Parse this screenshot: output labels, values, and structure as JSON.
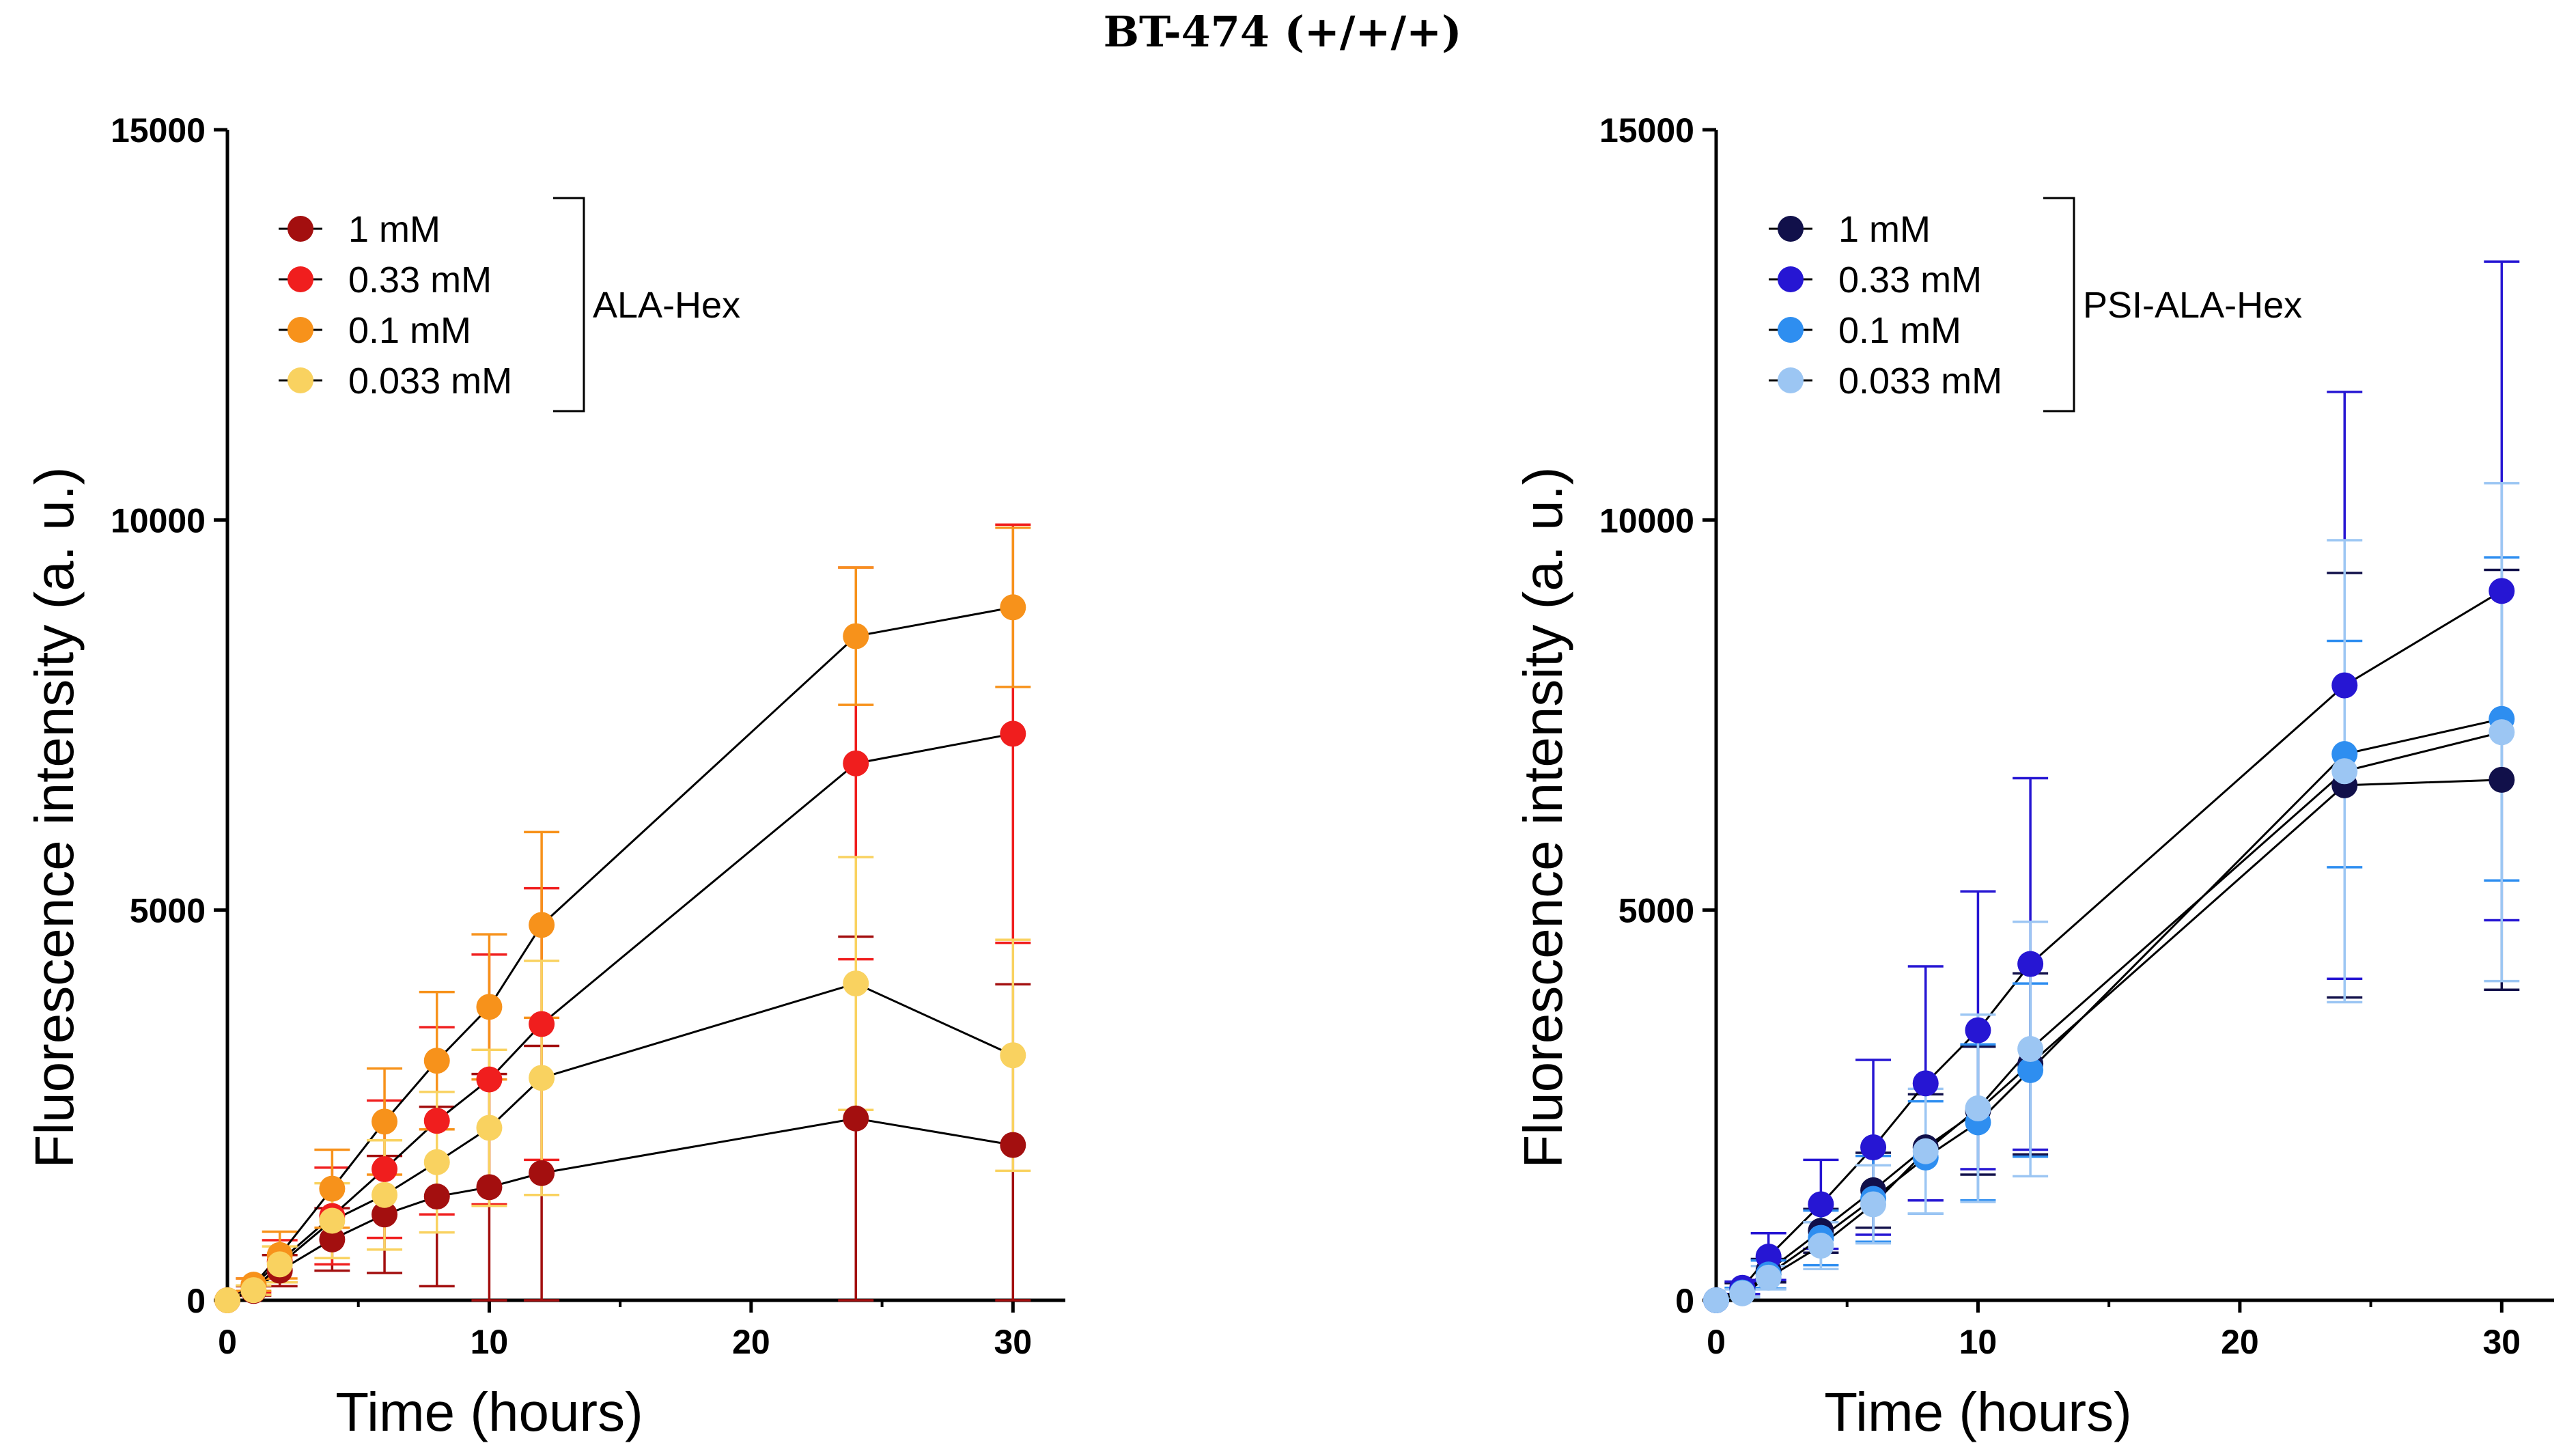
{
  "figure_title": "BT-474 (+/+/+)",
  "chart_data": [
    {
      "type": "line",
      "xlabel": "Time (hours)",
      "ylabel": "Fluorescence intensity (a. u.)",
      "xlim": [
        0,
        32
      ],
      "ylim": [
        0,
        15000
      ],
      "xticks": [
        "0",
        "10",
        "20",
        "30"
      ],
      "yticks": [
        "0",
        "5000",
        "10000",
        "15000"
      ],
      "grid": false,
      "legend_position": "top-left",
      "legend_group_label": "ALA-Hex",
      "x": [
        0,
        1,
        2,
        4,
        6,
        8,
        10,
        12,
        24,
        30
      ],
      "series": [
        {
          "name": "1 mM",
          "color": "#a30f0f",
          "values": [
            0,
            120,
            380,
            780,
            1100,
            1330,
            1450,
            1630,
            2330,
            1990
          ],
          "errors": [
            0,
            60,
            200,
            400,
            750,
            1150,
            1450,
            1630,
            2330,
            2060
          ]
        },
        {
          "name": "0.33 mM",
          "color": "#f01e1e",
          "values": [
            0,
            190,
            500,
            1080,
            1680,
            2300,
            2830,
            3540,
            6880,
            7260
          ],
          "errors": [
            0,
            90,
            270,
            620,
            880,
            1200,
            1600,
            1740,
            2510,
            2680
          ]
        },
        {
          "name": "0.1 mM",
          "color": "#f7921b",
          "values": [
            0,
            200,
            580,
            1430,
            2290,
            3070,
            3760,
            4810,
            8510,
            8880
          ],
          "errors": [
            0,
            80,
            300,
            500,
            680,
            880,
            930,
            1190,
            880,
            1020
          ]
        },
        {
          "name": "0.033 mM",
          "color": "#f9d260",
          "values": [
            0,
            130,
            460,
            1020,
            1350,
            1770,
            2210,
            2850,
            4060,
            3140
          ],
          "errors": [
            0,
            60,
            230,
            480,
            700,
            900,
            1000,
            1500,
            1620,
            1480
          ]
        }
      ]
    },
    {
      "type": "line",
      "xlabel": "Time (hours)",
      "ylabel": "Fluorescence intensity (a. u.)",
      "xlim": [
        0,
        32
      ],
      "ylim": [
        0,
        15000
      ],
      "xticks": [
        "0",
        "10",
        "20",
        "30"
      ],
      "yticks": [
        "0",
        "5000",
        "10000",
        "15000"
      ],
      "grid": false,
      "legend_position": "top-left",
      "legend_group_label": "PSI-ALA-Hex",
      "x": [
        0,
        1,
        2,
        4,
        6,
        8,
        10,
        12,
        24,
        30
      ],
      "series": [
        {
          "name": "1 mM",
          "color": "#11104a",
          "values": [
            0,
            150,
            380,
            890,
            1410,
            1960,
            2430,
            3030,
            6600,
            6670
          ],
          "errors": [
            0,
            70,
            150,
            280,
            480,
            680,
            820,
            1160,
            2720,
            2690
          ]
        },
        {
          "name": "0.33 mM",
          "color": "#2616d3",
          "values": [
            0,
            160,
            560,
            1230,
            1960,
            2780,
            3460,
            4310,
            7880,
            9090
          ],
          "errors": [
            0,
            80,
            300,
            570,
            1120,
            1500,
            1780,
            2380,
            3760,
            4220
          ]
        },
        {
          "name": "0.1 mM",
          "color": "#2e8ef0",
          "values": [
            0,
            100,
            330,
            800,
            1300,
            1830,
            2280,
            2950,
            7000,
            7450
          ],
          "errors": [
            0,
            60,
            180,
            350,
            550,
            720,
            1000,
            1110,
            1450,
            2070
          ]
        },
        {
          "name": "0.033 mM",
          "color": "#9cc6f3",
          "values": [
            0,
            90,
            290,
            700,
            1230,
            1910,
            2460,
            3220,
            6780,
            7280
          ],
          "errors": [
            0,
            50,
            150,
            300,
            500,
            800,
            1200,
            1630,
            2960,
            3190
          ]
        }
      ]
    }
  ]
}
